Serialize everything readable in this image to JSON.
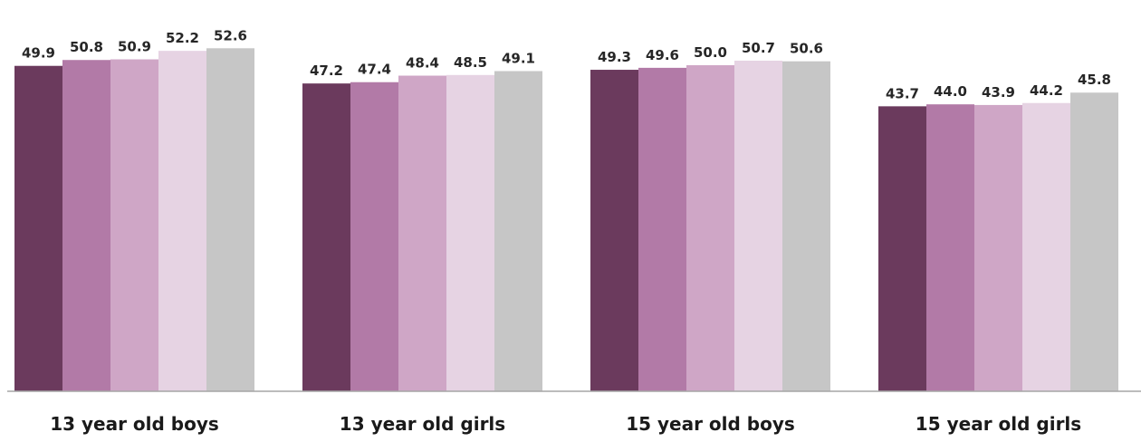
{
  "chart_data": {
    "type": "bar",
    "title": "",
    "xlabel": "",
    "ylabel": "",
    "ylim": [
      0,
      55
    ],
    "grid": false,
    "legend": "none",
    "categories": [
      "13 year old boys",
      "13 year old girls",
      "15 year old boys",
      "15 year old girls"
    ],
    "series": [
      {
        "color": "#6b3a5d",
        "values": [
          49.9,
          47.2,
          49.3,
          43.7
        ]
      },
      {
        "color": "#b27aa7",
        "values": [
          50.8,
          47.4,
          49.6,
          44.0
        ]
      },
      {
        "color": "#cfa6c6",
        "values": [
          50.9,
          48.4,
          50.0,
          43.9
        ]
      },
      {
        "color": "#e6d3e3",
        "values": [
          52.2,
          48.5,
          50.7,
          44.2
        ]
      },
      {
        "color": "#c6c6c6",
        "values": [
          52.6,
          49.1,
          50.6,
          45.8
        ]
      }
    ],
    "value_labels": [
      [
        "49.9",
        "50.8",
        "50.9",
        "52.2",
        "52.6"
      ],
      [
        "47.2",
        "47.4",
        "48.4",
        "48.5",
        "49.1"
      ],
      [
        "49.3",
        "49.6",
        "50.0",
        "50.7",
        "50.6"
      ],
      [
        "43.7",
        "44.0",
        "43.9",
        "44.2",
        "45.8"
      ]
    ]
  }
}
